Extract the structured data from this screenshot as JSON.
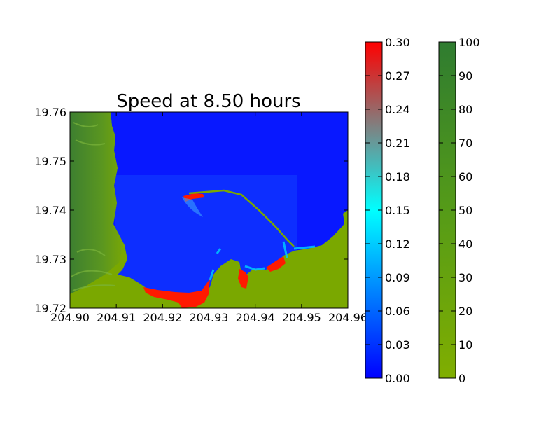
{
  "chart_data": {
    "type": "heatmap",
    "title": "Speed at 8.50 hours",
    "xlabel": "",
    "ylabel": "",
    "xlim": [
      204.9,
      204.96
    ],
    "ylim": [
      19.72,
      19.76
    ],
    "x_ticks": [
      "204.90",
      "204.91",
      "204.92",
      "204.93",
      "204.94",
      "204.95",
      "204.96"
    ],
    "y_ticks": [
      "19.72",
      "19.73",
      "19.74",
      "19.75",
      "19.76"
    ],
    "grid": false,
    "colorbars": [
      {
        "name": "speed",
        "range": [
          0.0,
          0.3
        ],
        "ticks": [
          "0.00",
          "0.03",
          "0.06",
          "0.09",
          "0.12",
          "0.15",
          "0.18",
          "0.21",
          "0.24",
          "0.27",
          "0.30"
        ],
        "colors": [
          "#0000ff",
          "#00ffff",
          "#808080",
          "#ff0000"
        ]
      },
      {
        "name": "topography",
        "range": [
          0,
          100
        ],
        "ticks": [
          "0",
          "10",
          "20",
          "30",
          "40",
          "50",
          "60",
          "70",
          "80",
          "90",
          "100"
        ],
        "colors": [
          "#7fad00",
          "#559c18",
          "#2e7d32"
        ]
      }
    ],
    "colors": {
      "water": "#0a1eff",
      "land": "#7aa800",
      "high_land": "#3a7a2e",
      "high_speed": "#ff1a00",
      "mid_speed": "#00c8ff"
    }
  }
}
